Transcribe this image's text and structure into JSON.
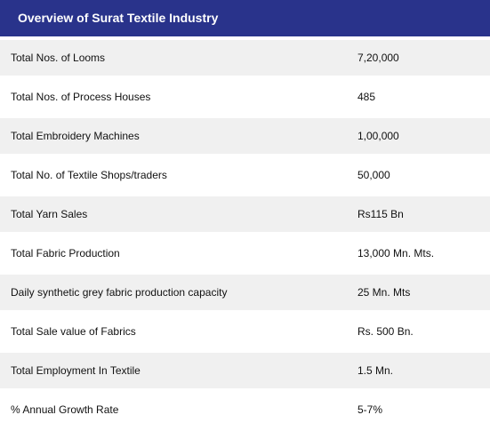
{
  "title": "Overview of Surat Textile Industry",
  "rows": [
    {
      "label": "Total Nos. of Looms",
      "value": "7,20,000"
    },
    {
      "label": "Total Nos. of Process Houses",
      "value": "485"
    },
    {
      "label": "Total Embroidery Machines",
      "value": "1,00,000"
    },
    {
      "label": "Total No. of Textile Shops/traders",
      "value": "50,000"
    },
    {
      "label": "Total Yarn Sales",
      "value": "Rs115 Bn"
    },
    {
      "label": "Total Fabric Production",
      "value": "13,000 Mn. Mts."
    },
    {
      "label": "Daily synthetic grey fabric production capacity",
      "value": "25 Mn. Mts"
    },
    {
      "label": "Total Sale value of Fabrics",
      "value": "Rs. 500 Bn."
    },
    {
      "label": "Total Employment In Textile",
      "value": "1.5 Mn."
    },
    {
      "label": "% Annual Growth Rate",
      "value": "5-7%"
    }
  ],
  "colors": {
    "header_bg": "#29338b",
    "row_alt_bg": "#f0f0f0"
  }
}
